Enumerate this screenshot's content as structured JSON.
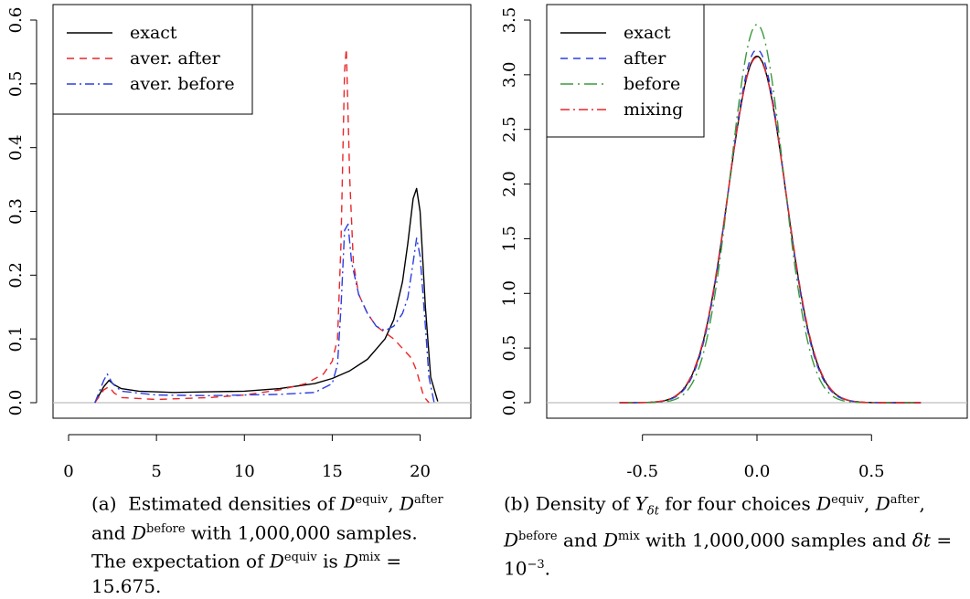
{
  "charts": [
    {
      "type": "line",
      "ylim": [
        0,
        0.6
      ],
      "xlim": [
        0,
        22
      ],
      "x_ticks": [
        "0",
        "5",
        "10",
        "15",
        "20"
      ],
      "y_ticks": [
        "0.0",
        "0.1",
        "0.2",
        "0.3",
        "0.4",
        "0.5",
        "0.6"
      ],
      "legend_position": "top-left",
      "series": [
        {
          "name": "exact",
          "color": "#000000",
          "dash": "solid",
          "x": [
            1.5,
            2.0,
            2.3,
            2.6,
            3.0,
            4.0,
            6.0,
            8.0,
            10.0,
            12.0,
            14.0,
            15.0,
            16.0,
            17.0,
            18.0,
            18.5,
            19.0,
            19.3,
            19.6,
            19.8,
            20.0,
            20.3,
            20.6,
            21.0
          ],
          "y": [
            0.0,
            0.025,
            0.035,
            0.028,
            0.022,
            0.018,
            0.016,
            0.017,
            0.018,
            0.022,
            0.03,
            0.038,
            0.05,
            0.068,
            0.1,
            0.13,
            0.19,
            0.25,
            0.32,
            0.336,
            0.3,
            0.15,
            0.04,
            0.002
          ]
        },
        {
          "name": "aver. after",
          "color": "#e8272a",
          "dash": "dashed",
          "x": [
            1.5,
            2.0,
            2.3,
            2.6,
            3.0,
            5.0,
            8.0,
            10.0,
            12.0,
            13.5,
            14.5,
            15.0,
            15.3,
            15.5,
            15.7,
            15.8,
            16.0,
            16.2,
            16.5,
            17.0,
            17.5,
            18.0,
            18.5,
            19.0,
            19.5,
            19.8,
            20.0,
            20.2,
            20.5
          ],
          "y": [
            0.0,
            0.02,
            0.025,
            0.015,
            0.008,
            0.005,
            0.008,
            0.012,
            0.02,
            0.03,
            0.045,
            0.065,
            0.1,
            0.25,
            0.52,
            0.555,
            0.35,
            0.22,
            0.17,
            0.14,
            0.12,
            0.11,
            0.1,
            0.085,
            0.07,
            0.05,
            0.03,
            0.01,
            0.0
          ]
        },
        {
          "name": "aver. before",
          "color": "#2b3ee0",
          "dash": "dashdot",
          "x": [
            1.5,
            2.0,
            2.2,
            2.5,
            3.0,
            5.0,
            8.0,
            10.0,
            12.0,
            14.0,
            15.0,
            15.3,
            15.5,
            15.7,
            15.9,
            16.1,
            16.5,
            17.0,
            17.5,
            18.0,
            18.5,
            19.0,
            19.3,
            19.6,
            19.8,
            20.0,
            20.3,
            20.5,
            20.8
          ],
          "y": [
            0.0,
            0.035,
            0.045,
            0.03,
            0.018,
            0.012,
            0.011,
            0.012,
            0.013,
            0.016,
            0.03,
            0.06,
            0.15,
            0.27,
            0.28,
            0.22,
            0.17,
            0.14,
            0.12,
            0.113,
            0.12,
            0.14,
            0.165,
            0.22,
            0.258,
            0.23,
            0.12,
            0.04,
            0.0
          ]
        }
      ]
    },
    {
      "type": "line",
      "ylim": [
        0,
        3.5
      ],
      "xlim": [
        -0.85,
        0.85
      ],
      "x_ticks": [
        "-0.5",
        "0.0",
        "0.5"
      ],
      "y_ticks": [
        "0.0",
        "0.5",
        "1.0",
        "1.5",
        "2.0",
        "2.5",
        "3.0",
        "3.5"
      ],
      "legend_position": "top-left",
      "series": [
        {
          "name": "exact",
          "color": "#000000",
          "dash": "solid",
          "peak": 3.17,
          "sigma": 0.126
        },
        {
          "name": "after",
          "color": "#2b3ee0",
          "dash": "dashed",
          "peak": 3.23,
          "sigma": 0.124
        },
        {
          "name": "before",
          "color": "#3a9a3a",
          "dash": "longdash",
          "peak": 3.46,
          "sigma": 0.116
        },
        {
          "name": "mixing",
          "color": "#e8272a",
          "dash": "dashdot",
          "peak": 3.16,
          "sigma": 0.127
        }
      ]
    }
  ]
}
